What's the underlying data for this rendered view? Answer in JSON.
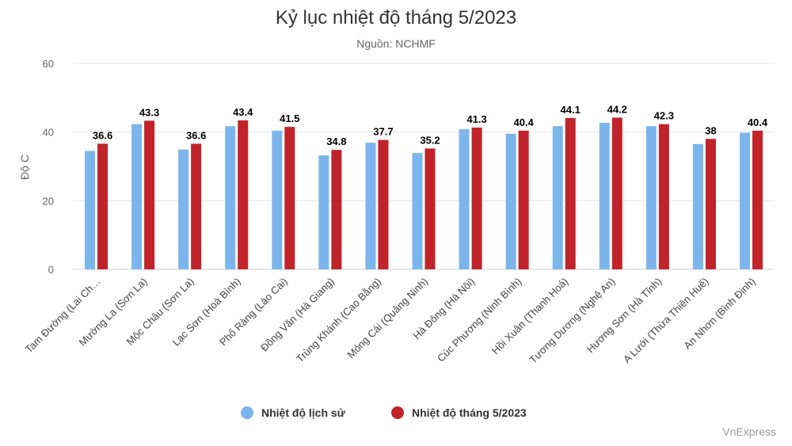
{
  "chart_data": {
    "type": "bar",
    "title": "Kỷ lục nhiệt độ tháng 5/2023",
    "subtitle": "Nguồn: NCHMF",
    "ylabel": "Độ C",
    "xlabel": "",
    "ylim": [
      0,
      60
    ],
    "yticks": [
      0,
      20,
      40,
      60
    ],
    "grid": true,
    "legend": "bottom",
    "categories": [
      "Tam Đường (Lai Châu)",
      "Mường La (Sơn La)",
      "Mộc Châu (Sơn La)",
      "Lạc Sơn (Hoà Bình)",
      "Phố Ràng (Lào Cai)",
      "Đồng Văn (Hà Giang)",
      "Trùng Khánh (Cao Bằng)",
      "Móng Cái (Quảng Ninh)",
      "Hà Đông (Hà Nội)",
      "Cúc Phương (Ninh Bình)",
      "Hồi Xuân (Thanh Hoá)",
      "Tương Dương (Nghệ An)",
      "Hương Sơn (Hà Tĩnh)",
      "A Lưới (Thừa Thiên Huế)",
      "An Nhơn (Bình Định)"
    ],
    "category_labels_display": [
      "Tam Đường (Lai Ch…",
      "Mường La (Sơn La)",
      "Mộc Châu (Sơn La)",
      "Lạc Sơn (Hoà Bình)",
      "Phố Ràng (Lào Cai)",
      "Đồng Văn (Hà Giang)",
      "Trùng Khánh (Cao Bằng)",
      "Móng Cái (Quảng Ninh)",
      "Hà Đông (Hà Nội)",
      "Cúc Phương (Ninh Bình)",
      "Hồi Xuân (Thanh Hoá)",
      "Tương Dương (Nghệ An)",
      "Hương Sơn (Hà Tĩnh)",
      "A Lưới (Thừa Thiên Huế)",
      "An Nhơn (Bình Định)"
    ],
    "series": [
      {
        "name": "Nhiệt độ lịch sử",
        "color": "#7cb5ec",
        "values": [
          34.5,
          42.3,
          34.9,
          41.7,
          40.4,
          33.2,
          36.9,
          33.9,
          40.8,
          39.5,
          41.7,
          42.7,
          41.7,
          36.5,
          39.8
        ],
        "show_labels": false
      },
      {
        "name": "Nhiệt độ tháng 5/2023",
        "color": "#c1232b",
        "values": [
          36.6,
          43.3,
          36.6,
          43.4,
          41.5,
          34.8,
          37.7,
          35.2,
          41.3,
          40.4,
          44.1,
          44.2,
          42.3,
          38,
          40.4
        ],
        "show_labels": true
      }
    ],
    "credit": "VnExpress"
  }
}
